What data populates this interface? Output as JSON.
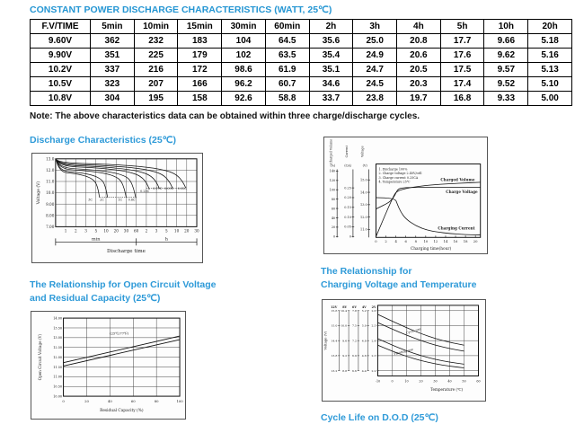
{
  "page": {
    "title": "CONSTANT POWER DISCHARGE CHARACTERISTICS (WATT, 25℃)",
    "note": "Note: The above characteristics data can be obtained within three charge/discharge cycles.",
    "accent_color": "#2e9ad8"
  },
  "table": {
    "headers": [
      "F.V/TIME",
      "5min",
      "10min",
      "15min",
      "30min",
      "60min",
      "2h",
      "3h",
      "4h",
      "5h",
      "10h",
      "20h"
    ],
    "rows": [
      [
        "9.60V",
        "362",
        "232",
        "183",
        "104",
        "64.5",
        "35.6",
        "25.0",
        "20.8",
        "17.7",
        "9.66",
        "5.18"
      ],
      [
        "9.90V",
        "351",
        "225",
        "179",
        "102",
        "63.5",
        "35.4",
        "24.9",
        "20.6",
        "17.6",
        "9.62",
        "5.16"
      ],
      [
        "10.2V",
        "337",
        "216",
        "172",
        "98.6",
        "61.9",
        "35.1",
        "24.7",
        "20.5",
        "17.5",
        "9.57",
        "5.13"
      ],
      [
        "10.5V",
        "323",
        "207",
        "166",
        "96.2",
        "60.7",
        "34.6",
        "24.5",
        "20.3",
        "17.4",
        "9.52",
        "5.10"
      ],
      [
        "10.8V",
        "304",
        "195",
        "158",
        "92.6",
        "58.8",
        "33.7",
        "23.8",
        "19.7",
        "16.8",
        "9.33",
        "5.00"
      ]
    ]
  },
  "sections": {
    "discharge_title": "Discharge Characteristics (25℃)",
    "ocv_title_1": "The Relationship for Open Circuit Voltage",
    "ocv_title_2": "and Residual Capacity (25℃)",
    "cvt_title_1": "The Relationship for",
    "cvt_title_2": "Charging Voltage and Temperature",
    "cycle_life_title": "Cycle Life on D.O.D (25℃)"
  },
  "chart_data": [
    {
      "id": "discharge",
      "type": "line",
      "title": "Discharge Characteristics (25℃)",
      "ylabel": "Voltage (V)",
      "xlabel": "Discharge time",
      "yticks": [
        "13.0",
        "12.0",
        "11.0",
        "10.0",
        "9.00",
        "8.00",
        "7.00"
      ],
      "ylim": [
        7.0,
        13.0
      ],
      "xticks": [
        "1",
        "2",
        "3",
        "5",
        "10",
        "20",
        "30",
        "60",
        "2",
        "3",
        "5",
        "10",
        "20",
        "30"
      ],
      "x_units": [
        "min",
        "h"
      ],
      "series": [
        {
          "label": "3C",
          "end": 4.35,
          "v0": 11.85,
          "vend": 9.6,
          "lx": 3.45,
          "ly": 9.3
        },
        {
          "label": "2C",
          "end": 5.15,
          "v0": 11.95,
          "vend": 9.6,
          "lx": 4.6,
          "ly": 9.3
        },
        {
          "label": "1C",
          "end": 7.0,
          "v0": 12.1,
          "vend": 9.6,
          "lx": 6.4,
          "ly": 9.3
        },
        {
          "label": "0.6C",
          "end": 7.95,
          "v0": 12.2,
          "vend": 9.55,
          "lx": 7.55,
          "ly": 9.3
        },
        {
          "label": "0.25C",
          "end": 9.3,
          "v0": 12.35,
          "vend": 10.3,
          "lx": 8.85,
          "ly": 10.05
        },
        {
          "label": "0.17C",
          "end": 10.3,
          "v0": 12.45,
          "vend": 10.35,
          "lx": 10.1,
          "ly": 10.28
        },
        {
          "label": "0.09C",
          "end": 11.6,
          "v0": 12.55,
          "vend": 10.4,
          "lx": 11.25,
          "ly": 10.28
        },
        {
          "label": "0.05C",
          "end": 12.9,
          "v0": 12.65,
          "vend": 10.45,
          "lx": 12.55,
          "ly": 10.28
        }
      ],
      "guide_lines": [
        {
          "x1": 4.35,
          "x2": 7.95,
          "v": 9.62
        },
        {
          "x1": 9.0,
          "x2": 12.9,
          "v": 10.42
        }
      ]
    },
    {
      "id": "charging",
      "type": "line",
      "title": "Charge Characteristics",
      "xlabel": "Charging time(hour)",
      "xticks": [
        0,
        2,
        4,
        6,
        8,
        10,
        12,
        14,
        16,
        18,
        20
      ],
      "axes": [
        {
          "name": "Charged Volume",
          "unit": "(%)",
          "ticks": [
            0,
            20,
            40,
            60,
            80,
            100,
            120,
            140
          ]
        },
        {
          "name": "Current",
          "unit": "(CA)",
          "ticks": [
            0,
            0.05,
            0.1,
            0.15,
            0.2,
            0.25
          ]
        },
        {
          "name": "Voltage",
          "unit": "(V)",
          "ticks": [
            11.0,
            12.0,
            13.0,
            14.0,
            15.0
          ]
        }
      ],
      "legend": [
        "1. Discharge 100%",
        "2. Charge voltage 2.40V/cell",
        "3. Charge current 0.25CA",
        "4. Temperature 25℃"
      ],
      "series": [
        {
          "label": "Charged Volume",
          "axis": "pct",
          "points": [
            [
              0,
              0
            ],
            [
              1.2,
              30
            ],
            [
              2.4,
              60
            ],
            [
              3.6,
              88
            ],
            [
              4.2,
              97
            ],
            [
              6,
              103
            ],
            [
              9,
              108
            ],
            [
              13,
              112
            ],
            [
              17,
              114
            ],
            [
              21,
              116
            ]
          ],
          "label_xy": [
            131,
            49
          ]
        },
        {
          "label": "Charge Voltage",
          "axis": "v",
          "points": [
            [
              0,
              12.65
            ],
            [
              1,
              12.85
            ],
            [
              2,
              13.05
            ],
            [
              3,
              13.3
            ],
            [
              3.8,
              13.75
            ],
            [
              4.3,
              14.2
            ],
            [
              5,
              14.35
            ],
            [
              7,
              14.4
            ],
            [
              21,
              14.4
            ]
          ],
          "label_xy": [
            137,
            63
          ]
        },
        {
          "label": "Charging Current",
          "axis": "ca",
          "points": [
            [
              0,
              0.2
            ],
            [
              3.8,
              0.2
            ],
            [
              4.3,
              0.165
            ],
            [
              5,
              0.125
            ],
            [
              6,
              0.09
            ],
            [
              8,
              0.055
            ],
            [
              10,
              0.035
            ],
            [
              12,
              0.024
            ],
            [
              15,
              0.015
            ],
            [
              18,
              0.01
            ],
            [
              21,
              0.008
            ]
          ],
          "label_xy": [
            128,
            104
          ]
        }
      ]
    },
    {
      "id": "ocv",
      "type": "line",
      "title": "The Relationship for Open Circuit Voltage and Residual Capacity (25℃)",
      "ylabel": "Open Circuit Voltage (V)",
      "xlabel": "Residual Capacity (%)",
      "yticks": [
        "14.00",
        "13.50",
        "13.00",
        "12.50",
        "12.00",
        "11.50",
        "11.00",
        "10.50",
        "10.00"
      ],
      "ylim": [
        10.0,
        14.0
      ],
      "xticks": [
        0,
        20,
        40,
        60,
        80,
        100
      ],
      "annotation": "(25℃/77℉)",
      "series": [
        {
          "label": "upper",
          "points": [
            [
              0,
              11.72
            ],
            [
              100,
              13.08
            ]
          ]
        },
        {
          "label": "lower",
          "points": [
            [
              0,
              11.55
            ],
            [
              100,
              12.9
            ]
          ]
        }
      ]
    },
    {
      "id": "cvt",
      "type": "line",
      "title": "The Relationship for Charging Voltage and Temperature",
      "ylabel": "Voltage (V)",
      "xlabel": "Temperature (℃)",
      "xticks": [
        -10,
        0,
        10,
        20,
        30,
        40,
        50,
        60
      ],
      "scales": [
        {
          "name": "12V",
          "values": [
            "15.6",
            "15.0",
            "14.4",
            "13.8",
            "13.2"
          ]
        },
        {
          "name": "8V",
          "values": [
            "10.4",
            "10.0",
            "9.6",
            "9.2",
            "8.8"
          ]
        },
        {
          "name": "6V",
          "values": [
            "7.8",
            "7.5",
            "7.2",
            "6.9",
            "6.6"
          ]
        },
        {
          "name": "4V",
          "values": [
            "5.2",
            "5.0",
            "4.8",
            "4.6",
            "4.4"
          ]
        },
        {
          "name": "2V",
          "values": [
            "2.6",
            "2.5",
            "2.4",
            "2.3",
            "2.2"
          ]
        }
      ],
      "bands": [
        {
          "label": "Cycle use",
          "label_xy": [
            15,
            14.75
          ],
          "angle": -16,
          "upper": [
            [
              -10,
              15.45
            ],
            [
              0,
              15.18
            ],
            [
              10,
              14.92
            ],
            [
              20,
              14.68
            ],
            [
              30,
              14.48
            ],
            [
              40,
              14.33
            ],
            [
              50,
              14.22
            ]
          ],
          "lower": [
            [
              -10,
              15.12
            ],
            [
              0,
              14.86
            ],
            [
              10,
              14.62
            ],
            [
              20,
              14.4
            ],
            [
              30,
              14.22
            ],
            [
              40,
              14.08
            ],
            [
              50,
              13.98
            ]
          ]
        },
        {
          "label": "Floating use",
          "label_xy": [
            8,
            13.92
          ],
          "angle": -14,
          "upper": [
            [
              -10,
              14.48
            ],
            [
              0,
              14.22
            ],
            [
              10,
              13.99
            ],
            [
              20,
              13.8
            ],
            [
              30,
              13.65
            ],
            [
              40,
              13.54
            ],
            [
              50,
              13.46
            ]
          ],
          "lower": [
            [
              -10,
              14.22
            ],
            [
              0,
              13.98
            ],
            [
              10,
              13.77
            ],
            [
              20,
              13.6
            ],
            [
              30,
              13.47
            ],
            [
              40,
              13.38
            ],
            [
              50,
              13.31
            ]
          ]
        }
      ]
    }
  ]
}
